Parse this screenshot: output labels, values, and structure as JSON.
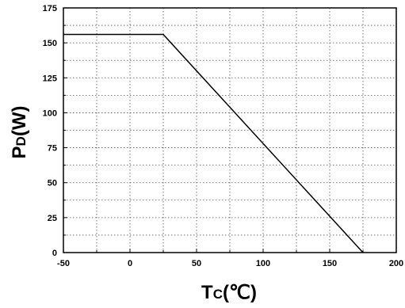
{
  "chart_data": {
    "type": "line",
    "title": "",
    "xlabel": {
      "main": "T",
      "sub": "C",
      "unit": "(℃)"
    },
    "ylabel": {
      "main": "P",
      "sub": "D",
      "unit": "(W)"
    },
    "xlim": [
      -50,
      200
    ],
    "ylim": [
      0,
      175
    ],
    "xticks": [
      -50,
      0,
      50,
      100,
      150,
      200
    ],
    "yticks": [
      0,
      25,
      50,
      75,
      100,
      125,
      150,
      175
    ],
    "x_minor_step": 25,
    "y_minor_step": 12.5,
    "grid": true,
    "grid_style": "dotted",
    "series": [
      {
        "color": "#000000",
        "x": [
          -50,
          25,
          175
        ],
        "y": [
          156,
          156,
          0
        ]
      }
    ]
  }
}
